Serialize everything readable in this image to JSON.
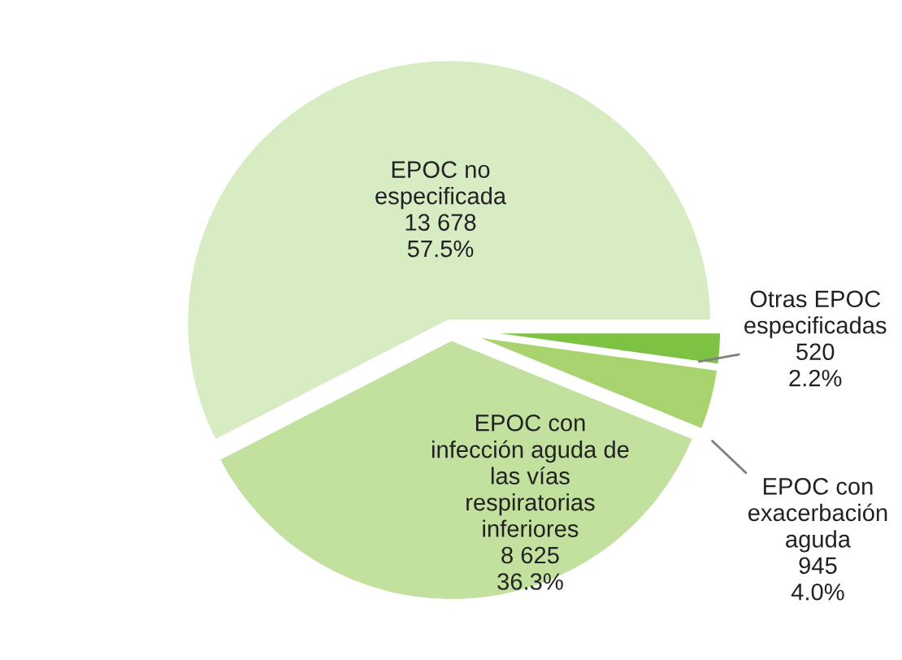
{
  "chart_data": {
    "type": "pie",
    "categories": [
      "Otras EPOC\nespecificadas",
      "EPOC con\nexacerbación\naguda",
      "EPOC con\ninfección aguda de\nlas vías\nrespiratorias\ninferiores",
      "EPOC no\nespecificada"
    ],
    "values": [
      520,
      945,
      8625,
      13678
    ],
    "value_labels": [
      "520\n2.2%",
      "945\n4.0%",
      "8 625\n36.3%",
      "13 678\n57.5%"
    ],
    "colors": [
      "#7dc242",
      "#a9d36e",
      "#c2e19f",
      "#d8ecc4"
    ],
    "legend": false
  }
}
